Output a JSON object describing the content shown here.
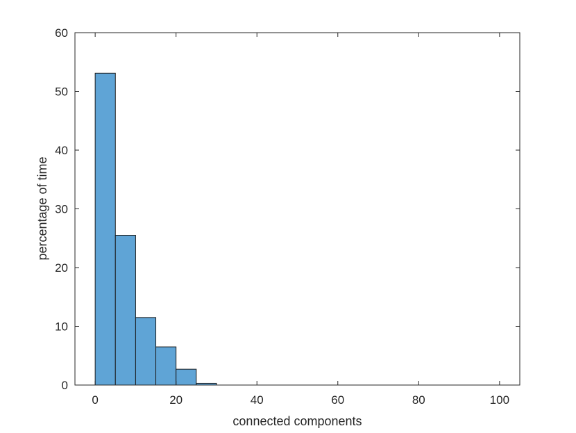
{
  "chart_data": {
    "type": "bar",
    "variant": "histogram",
    "bin_edges": [
      0,
      5,
      10,
      15,
      20,
      25,
      30
    ],
    "values": [
      53.1,
      25.5,
      11.5,
      6.5,
      2.7,
      0.3
    ],
    "xlabel": "connected components",
    "ylabel": "percentage of time",
    "xlim": [
      -5,
      105
    ],
    "ylim": [
      0,
      60
    ],
    "xticks": [
      0,
      20,
      40,
      60,
      80,
      100
    ],
    "yticks": [
      0,
      10,
      20,
      30,
      40,
      50,
      60
    ],
    "grid": false,
    "legend": "none",
    "bar_color": "#5fa4d6",
    "bar_edge_color": "#1a1a1a"
  }
}
